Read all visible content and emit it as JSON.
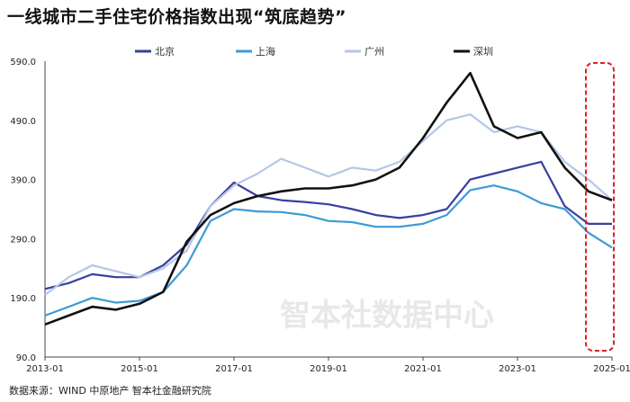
{
  "title": "一线城市二手住宅价格指数出现“筑底趋势”",
  "source": "数据来源：WIND 中原地产 智本社金融研究院",
  "watermark": "智本社数据中心",
  "chart_data": {
    "type": "line",
    "title": "一线城市二手住宅价格指数出现“筑底趋势”",
    "ylim": [
      90,
      590
    ],
    "yticks": [
      "590.0",
      "490.0",
      "390.0",
      "290.0",
      "190.0",
      "90.0"
    ],
    "xticks": [
      "2013-01",
      "2015-01",
      "2017-01",
      "2019-01",
      "2021-01",
      "2023-01",
      "2025-01"
    ],
    "xrange": [
      "2013-01",
      "2025-01"
    ],
    "legend_position": "top",
    "grid": false,
    "highlight": "2024-09 to 2025-01 (red dashed box)",
    "x": [
      "2013-01",
      "2013-07",
      "2014-01",
      "2014-07",
      "2015-01",
      "2015-07",
      "2016-01",
      "2016-07",
      "2017-01",
      "2017-07",
      "2018-01",
      "2018-07",
      "2019-01",
      "2019-07",
      "2020-01",
      "2020-07",
      "2021-01",
      "2021-07",
      "2022-01",
      "2022-07",
      "2023-01",
      "2023-07",
      "2024-01",
      "2024-07",
      "2025-01"
    ],
    "series": [
      {
        "name": "北京",
        "color": "#3a3f9e",
        "values": [
          205,
          215,
          230,
          225,
          225,
          245,
          280,
          345,
          385,
          362,
          355,
          352,
          348,
          340,
          330,
          325,
          330,
          340,
          390,
          400,
          410,
          420,
          345,
          315,
          315
        ]
      },
      {
        "name": "上海",
        "color": "#3d9ad6",
        "values": [
          160,
          175,
          190,
          182,
          185,
          200,
          245,
          320,
          340,
          336,
          335,
          330,
          320,
          318,
          310,
          310,
          315,
          330,
          372,
          380,
          370,
          350,
          340,
          300,
          275
        ]
      },
      {
        "name": "广州",
        "color": "#b4c7e7",
        "values": [
          195,
          225,
          245,
          235,
          225,
          240,
          270,
          345,
          380,
          400,
          425,
          410,
          395,
          410,
          405,
          420,
          455,
          490,
          500,
          470,
          480,
          470,
          420,
          390,
          355
        ]
      },
      {
        "name": "深圳",
        "color": "#111111",
        "values": [
          145,
          160,
          175,
          170,
          180,
          200,
          285,
          330,
          350,
          362,
          370,
          375,
          375,
          380,
          390,
          410,
          460,
          520,
          570,
          480,
          460,
          470,
          410,
          370,
          355
        ]
      }
    ]
  }
}
